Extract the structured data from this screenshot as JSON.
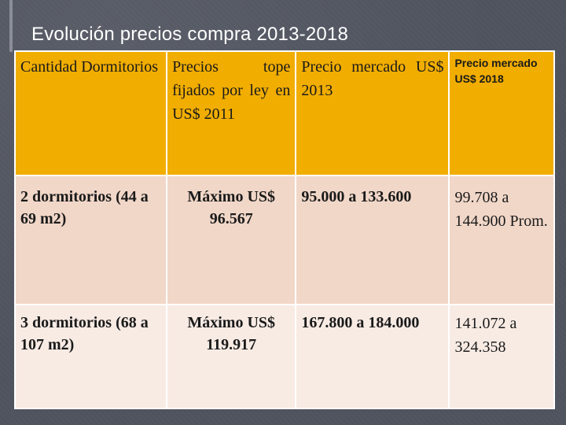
{
  "slide": {
    "title": "Evolución precios compra 2013-2018"
  },
  "table": {
    "headers": [
      "Cantidad Dormitorios",
      "Precios tope fijados por ley en US$ 2011",
      "Precio mercado US$ 2013",
      "Precio mercado US$ 2018"
    ],
    "rows": [
      {
        "dormitorios": "2 dormitorios (44 a 69 m2)",
        "tope": "Máximo US$ 96.567",
        "mercado_2013": "95.000 a 133.600",
        "mercado_2018": "99.708 a 144.900 Prom."
      },
      {
        "dormitorios": "3 dormitorios (68 a 107 m2)",
        "tope": "Máximo US$ 119.917",
        "mercado_2013": "167.800 a 184.000",
        "mercado_2018": "141.072 a 324.358"
      }
    ]
  },
  "colors": {
    "background": "#4f535e",
    "header_fill": "#f1ad00",
    "row1_fill": "#f1d7c8",
    "row2_fill": "#f8ebe4"
  }
}
